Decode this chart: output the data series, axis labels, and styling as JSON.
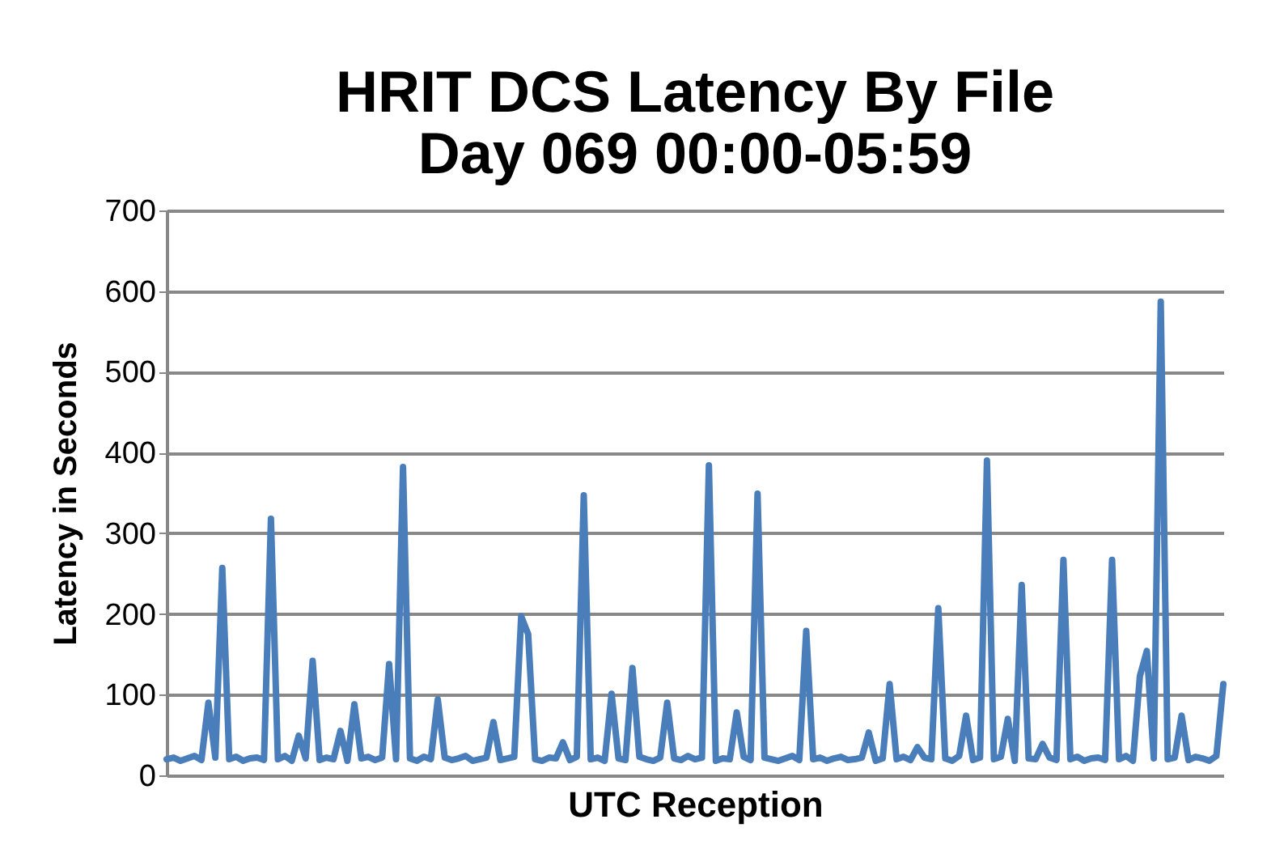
{
  "chart_data": {
    "type": "line",
    "title": "HRIT DCS Latency By File",
    "subtitle": "Day 069 00:00-05:59",
    "xlabel": "UTC Reception",
    "ylabel": "Latency in Seconds",
    "categories": [
      null,
      null,
      null,
      null,
      null,
      null,
      null,
      null,
      null,
      null,
      null,
      null,
      null,
      null,
      null,
      null,
      null,
      null,
      null,
      null,
      null,
      null,
      null,
      null,
      null,
      null,
      null,
      null,
      null,
      null,
      null,
      null,
      null,
      null,
      null,
      null,
      null,
      null,
      null,
      null,
      null,
      null,
      null,
      null,
      null,
      null,
      null,
      null,
      null,
      null,
      null,
      null,
      null,
      null,
      null,
      null,
      null,
      null,
      null,
      null,
      null,
      null,
      null,
      null,
      null,
      null,
      null,
      null,
      null,
      null,
      null,
      null,
      null,
      null,
      null,
      null,
      null,
      null,
      null,
      null,
      null,
      null,
      null,
      null,
      null,
      null,
      null,
      null,
      null,
      null,
      null,
      null,
      null,
      null,
      null,
      null,
      null,
      null,
      null,
      null,
      null,
      null,
      null,
      null,
      null,
      null,
      null,
      null,
      null,
      null,
      null,
      null,
      null,
      null,
      null,
      null,
      null,
      null,
      null,
      null,
      null,
      null,
      null,
      null,
      null,
      null,
      null,
      null,
      null,
      null,
      null,
      null,
      null,
      null,
      null,
      null,
      null,
      null,
      null,
      null,
      null,
      null,
      null,
      null,
      null,
      null,
      null,
      null,
      null,
      null,
      null,
      null,
      null
    ],
    "series": [
      {
        "color": "#4a7ebb",
        "values": [
          20,
          22,
          18,
          21,
          24,
          19,
          90,
          22,
          257,
          20,
          23,
          18,
          21,
          22,
          19,
          318,
          20,
          24,
          18,
          49,
          21,
          142,
          19,
          22,
          20,
          55,
          18,
          88,
          21,
          23,
          19,
          22,
          138,
          20,
          382,
          21,
          18,
          23,
          20,
          94,
          22,
          19,
          21,
          24,
          18,
          20,
          22,
          66,
          19,
          21,
          23,
          197,
          175,
          20,
          18,
          22,
          21,
          41,
          19,
          23,
          347,
          20,
          22,
          18,
          101,
          21,
          19,
          133,
          23,
          20,
          18,
          22,
          90,
          21,
          19,
          24,
          20,
          22,
          384,
          18,
          21,
          20,
          78,
          23,
          19,
          349,
          22,
          20,
          18,
          21,
          24,
          19,
          179,
          20,
          22,
          18,
          21,
          23,
          19,
          20,
          22,
          53,
          18,
          21,
          113,
          20,
          23,
          19,
          35,
          22,
          20,
          207,
          21,
          18,
          24,
          74,
          19,
          22,
          390,
          20,
          23,
          70,
          18,
          236,
          21,
          20,
          39,
          22,
          19,
          267,
          20,
          23,
          18,
          21,
          22,
          19,
          267,
          20,
          24,
          18,
          123,
          154,
          21,
          587,
          20,
          22,
          74,
          19,
          23,
          21,
          18,
          24,
          113
        ]
      }
    ],
    "ylim": [
      0,
      700
    ],
    "yticks": [
      0,
      100,
      200,
      300,
      400,
      500,
      600,
      700
    ],
    "grid": "y",
    "marker": "none",
    "line_style": "solid"
  }
}
